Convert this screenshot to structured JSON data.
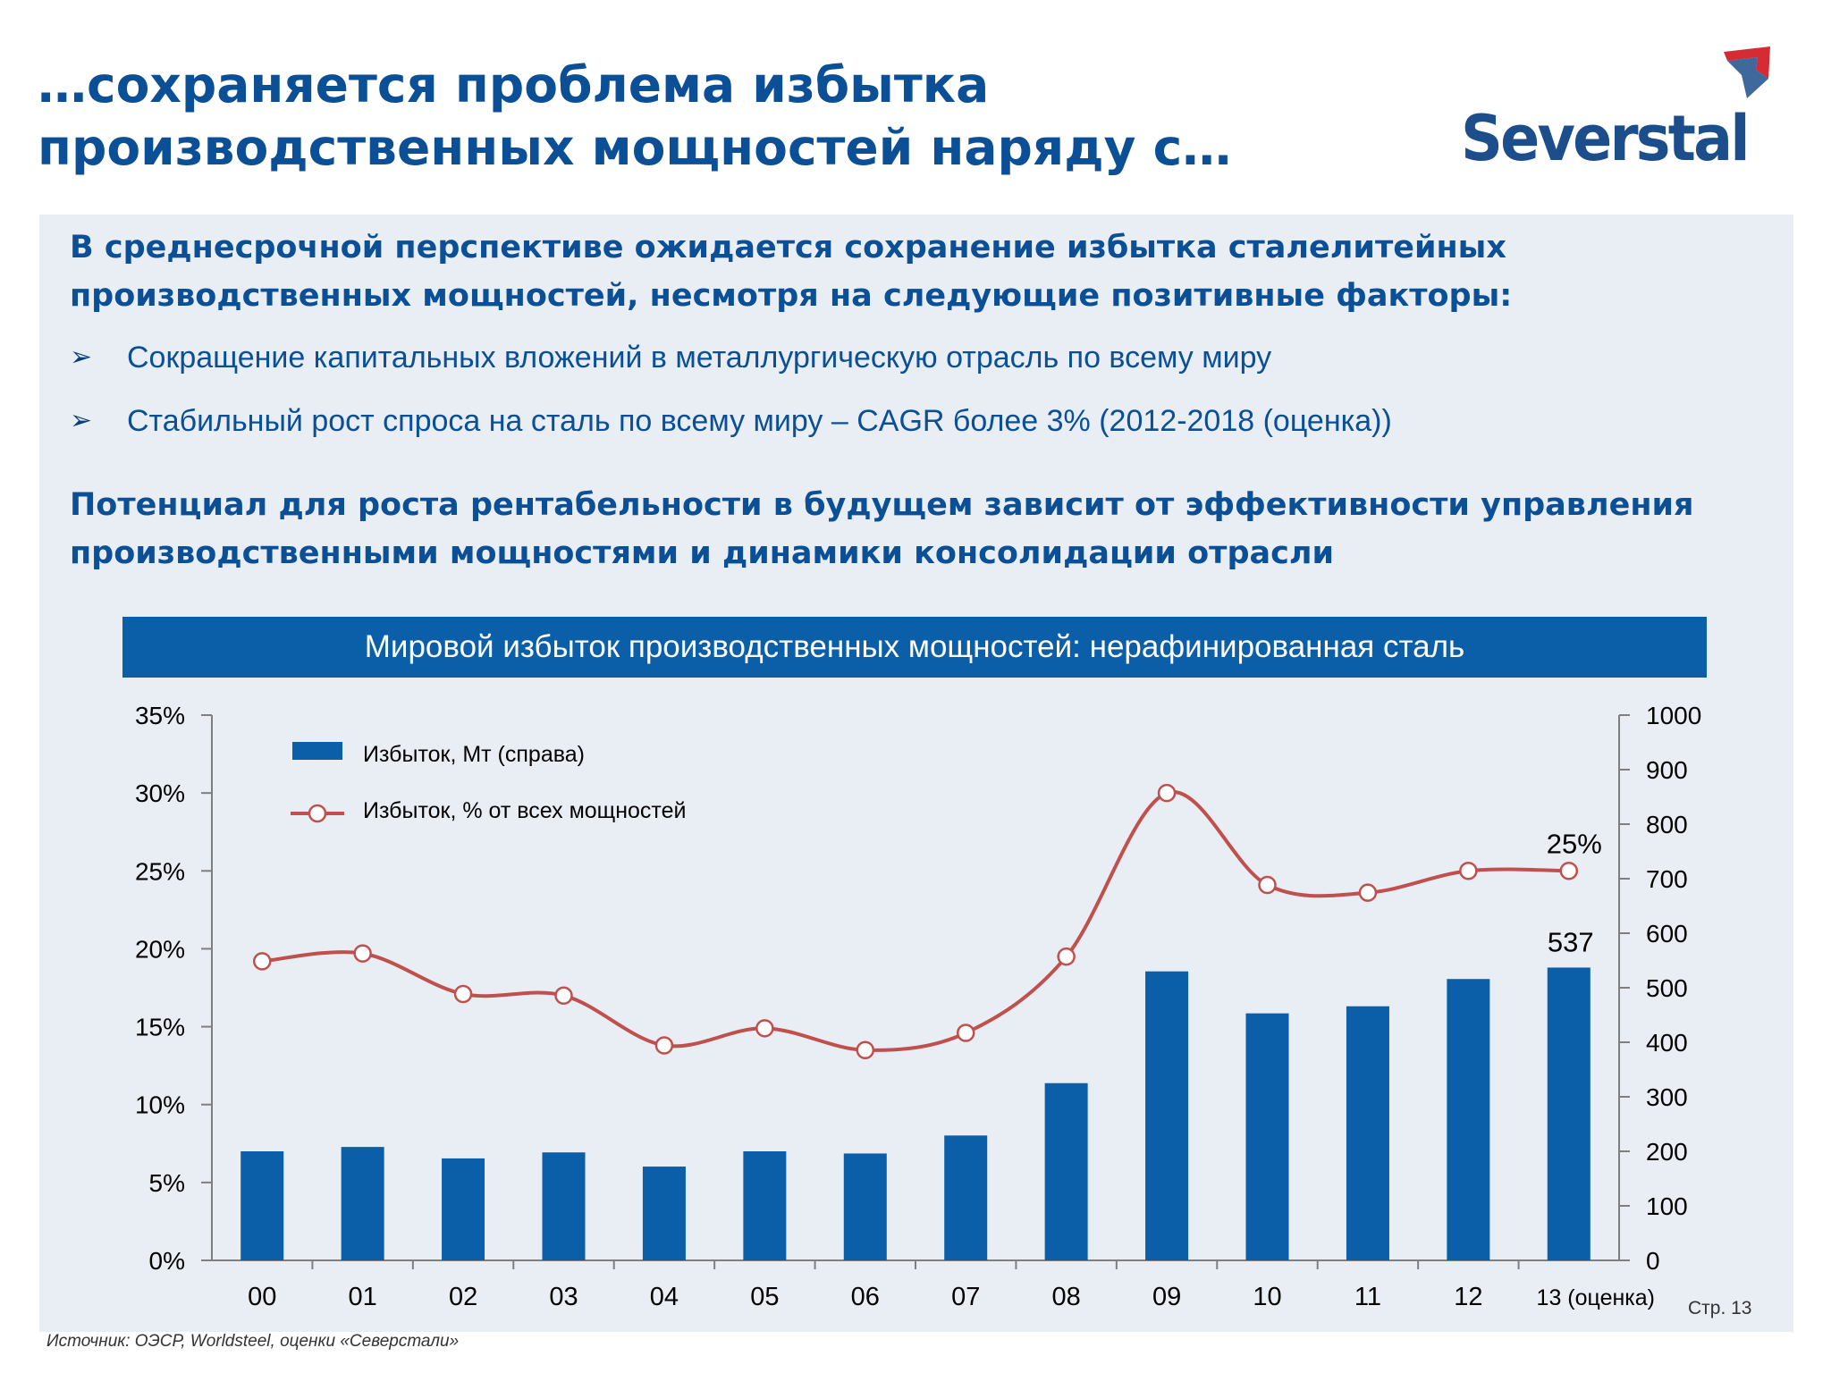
{
  "title": {
    "line1": "…сохраняется проблема избытка",
    "line2": "производственных мощностей наряду с…"
  },
  "logo": {
    "text": "Severstal",
    "icon": "severstal-logo-icon"
  },
  "intro": {
    "heading_line1": "В среднесрочной перспективе ожидается сохранение избытка сталелитейных",
    "heading_line2": "производственных мощностей, несмотря на следующие позитивные факторы:",
    "bullets": [
      "Сокращение капитальных вложений в металлургическую отрасль по всему миру",
      "Стабильный рост спроса на сталь по всему миру – CAGR более 3% (2012-2018 (оценка))"
    ],
    "bullet_icon": "arrowhead-bullet-icon"
  },
  "conclusion": {
    "line1": "Потенциал для роста рентабельности в будущем зависит от эффективности управления",
    "line2": "производственными мощностями и динамики консолидации отрасли"
  },
  "chart_header": "Мировой избыток производственных мощностей: нерафинированная сталь",
  "chart_data": {
    "type": "bar",
    "title": "Мировой избыток производственных мощностей: нерафинированная сталь",
    "categories": [
      "00",
      "01",
      "02",
      "03",
      "04",
      "05",
      "06",
      "07",
      "08",
      "09",
      "10",
      "11",
      "12",
      "13 (оценка)"
    ],
    "series": [
      {
        "name": "Избыток, Мт (справа)",
        "type": "bar",
        "axis": "right",
        "color": "#0b5ea8",
        "values": [
          200,
          208,
          187,
          198,
          172,
          200,
          196,
          229,
          325,
          530,
          453,
          466,
          516,
          537
        ]
      },
      {
        "name": "Избыток, % от всех мощностей",
        "type": "line",
        "axis": "left",
        "color": "#c0504d",
        "values": [
          19.2,
          19.7,
          17.1,
          17.0,
          13.8,
          14.9,
          13.5,
          14.6,
          19.5,
          30.0,
          24.1,
          23.6,
          25.0,
          25.0
        ]
      }
    ],
    "left_axis": {
      "min": 0,
      "max": 35,
      "step": 5,
      "ticks": [
        "0%",
        "5%",
        "10%",
        "15%",
        "20%",
        "25%",
        "30%",
        "35%"
      ]
    },
    "right_axis": {
      "min": 0,
      "max": 1000,
      "step": 100,
      "ticks": [
        "0",
        "100",
        "200",
        "300",
        "400",
        "500",
        "600",
        "700",
        "800",
        "900",
        "1000"
      ]
    },
    "annotations": [
      {
        "series": "bar",
        "index": 13,
        "text": "537"
      },
      {
        "series": "line",
        "index": 13,
        "text": "25%"
      }
    ],
    "legend_position": "top-left",
    "grid": false
  },
  "page_label": "Стр. 13",
  "source": "Источник:  ОЭСР, Worldsteel, оценки «Северстали»"
}
